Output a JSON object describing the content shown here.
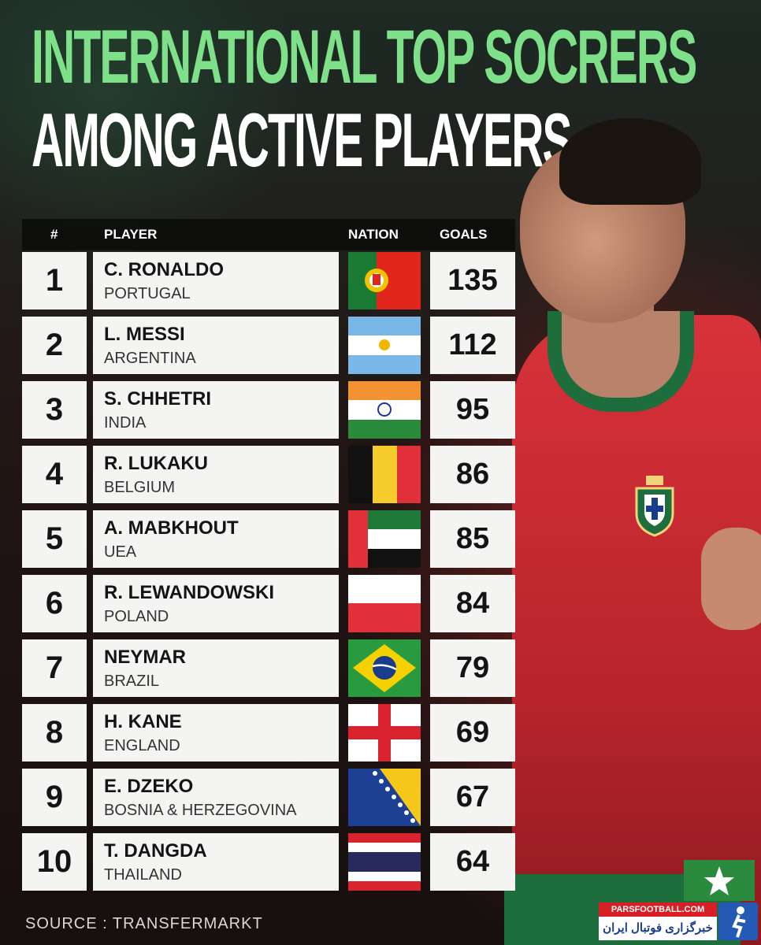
{
  "title": {
    "line1": "INTERNATIONAL TOP SOCRERS",
    "line2": "AMONG ACTIVE PLAYERS"
  },
  "table": {
    "headers": {
      "rank": "#",
      "player": "PLAYER",
      "nation": "NATION",
      "goals": "GOALS"
    },
    "rows": [
      {
        "rank": "1",
        "name": "C. RONALDO",
        "nation": "PORTUGAL",
        "goals": "135",
        "flag": "portugal"
      },
      {
        "rank": "2",
        "name": "L. MESSI",
        "nation": "ARGENTINA",
        "goals": "112",
        "flag": "argentina"
      },
      {
        "rank": "3",
        "name": "S. CHHETRI",
        "nation": "INDIA",
        "goals": "95",
        "flag": "india"
      },
      {
        "rank": "4",
        "name": "R. LUKAKU",
        "nation": "BELGIUM",
        "goals": "86",
        "flag": "belgium"
      },
      {
        "rank": "5",
        "name": "A. MABKHOUT",
        "nation": "UEA",
        "goals": "85",
        "flag": "uae"
      },
      {
        "rank": "6",
        "name": "R. LEWANDOWSKI",
        "nation": "POLAND",
        "goals": "84",
        "flag": "poland"
      },
      {
        "rank": "7",
        "name": "NEYMAR",
        "nation": "BRAZIL",
        "goals": "79",
        "flag": "brazil"
      },
      {
        "rank": "8",
        "name": "H. KANE",
        "nation": "ENGLAND",
        "goals": "69",
        "flag": "england"
      },
      {
        "rank": "9",
        "name": "E. DZEKO",
        "nation": "BOSNIA & HERZEGOVINA",
        "goals": "67",
        "flag": "bosnia"
      },
      {
        "rank": "10",
        "name": "T. DANGDA",
        "nation": "THAILAND",
        "goals": "64",
        "flag": "thailand"
      }
    ]
  },
  "source": "SOURCE : TRANSFERMARKT",
  "watermark": {
    "top": "PARSFOOTBALL.COM",
    "bottom": "خبرگزاری فوتبال ایران"
  },
  "colors": {
    "title_green": "#7fe08a",
    "jersey_red": "#d8323a",
    "cell_bg": "#f4f4f2"
  }
}
